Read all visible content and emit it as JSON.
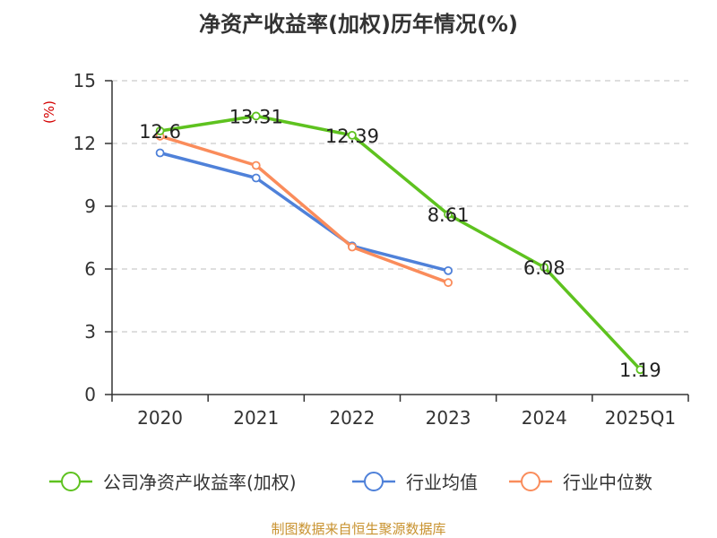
{
  "chart_data": {
    "type": "line",
    "title": "净资产收益率(加权)历年情况(%)",
    "ylabel": "(%)",
    "xlabel": "",
    "categories": [
      "2020",
      "2021",
      "2022",
      "2023",
      "2024",
      "2025Q1"
    ],
    "ylim": [
      0,
      15
    ],
    "yticks": [
      0,
      3,
      6,
      9,
      12,
      15
    ],
    "grid": true,
    "legend_position": "bottom",
    "series": [
      {
        "name": "公司净资产收益率(加权)",
        "color": "#5ec21f",
        "values": [
          12.6,
          13.31,
          12.39,
          8.61,
          6.08,
          1.19
        ],
        "labels": [
          "12.6",
          "13.31",
          "12.39",
          "8.61",
          "6.08",
          "1.19"
        ]
      },
      {
        "name": "行业均值",
        "color": "#4f81d9",
        "values": [
          11.55,
          10.35,
          7.1,
          5.92,
          null,
          null
        ]
      },
      {
        "name": "行业中位数",
        "color": "#fa8c5b",
        "values": [
          12.35,
          10.95,
          7.05,
          5.35,
          null,
          null
        ]
      }
    ],
    "source": "制图数据来自恒生聚源数据库"
  }
}
